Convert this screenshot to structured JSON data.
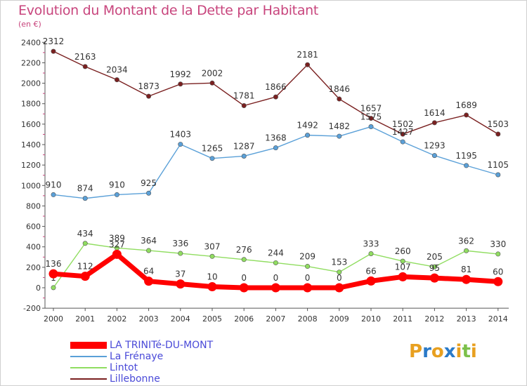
{
  "title": "Evolution du Montant de la Dette par Habitant",
  "subtitle": "(en €)",
  "logo": {
    "text": "Proxiti",
    "colors": [
      "#e8a020",
      "#2a7ac8",
      "#e8a020",
      "#2a7ac8",
      "#e8a020",
      "#7cc04a",
      "#e8a020"
    ]
  },
  "chart_data": {
    "type": "line",
    "x": [
      "2000",
      "2001",
      "2002",
      "2003",
      "2004",
      "2005",
      "2006",
      "2007",
      "2008",
      "2009",
      "2010",
      "2011",
      "2012",
      "2013",
      "2014"
    ],
    "ylim": [
      -200,
      2400
    ],
    "yticks": [
      -200,
      0,
      200,
      400,
      600,
      800,
      1000,
      1200,
      1400,
      1600,
      1800,
      2000,
      2200,
      2400
    ],
    "grid": false,
    "legend": "bottom-left",
    "series": [
      {
        "name": "Lillebonne",
        "color": "#7a2020",
        "values": [
          2312,
          2163,
          2034,
          1873,
          1992,
          2002,
          1781,
          1866,
          2181,
          1846,
          1657,
          1502,
          1614,
          1689,
          1503
        ]
      },
      {
        "name": "La Frénaye",
        "color": "#5aa0d8",
        "values": [
          910,
          874,
          910,
          925,
          1403,
          1265,
          1287,
          1368,
          1492,
          1482,
          1575,
          1427,
          1293,
          1195,
          1105
        ]
      },
      {
        "name": "Lintot",
        "color": "#90dd60",
        "values": [
          1,
          434,
          389,
          364,
          336,
          307,
          276,
          244,
          209,
          153,
          333,
          260,
          205,
          362,
          330
        ]
      },
      {
        "name": "LA TRINITé-DU-MONT",
        "color": "#ff0000",
        "values": [
          136,
          112,
          327,
          64,
          37,
          10,
          0,
          0,
          0,
          0,
          66,
          107,
          95,
          81,
          60
        ]
      }
    ]
  },
  "legend_items": [
    {
      "label": "LA TRINITé-DU-MONT",
      "color": "#ff0000",
      "thick": true
    },
    {
      "label": "La Frénaye",
      "color": "#5aa0d8",
      "thick": false
    },
    {
      "label": "Lintot",
      "color": "#90dd60",
      "thick": false
    },
    {
      "label": "Lillebonne",
      "color": "#7a2020",
      "thick": false
    }
  ]
}
